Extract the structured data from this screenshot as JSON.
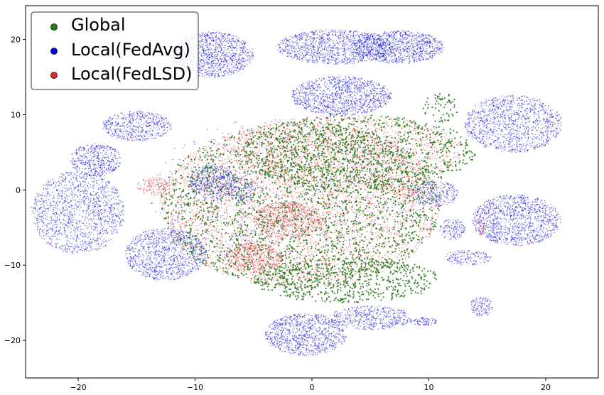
{
  "chart_data": {
    "type": "scatter",
    "title": "",
    "xlabel": "",
    "ylabel": "",
    "xlim": [
      -24.5,
      24.5
    ],
    "ylim": [
      -25,
      24.5
    ],
    "x_ticks": [
      -20,
      -10,
      0,
      10,
      20
    ],
    "y_ticks": [
      -20,
      -10,
      0,
      10,
      20
    ],
    "grid": false,
    "legend": {
      "placement": "top-left"
    },
    "series": [
      {
        "name": "Global",
        "color": "#2a7a1a",
        "clusters": [
          {
            "cx": -1,
            "cy": -2,
            "rx": 12,
            "ry": 11,
            "n": 2200
          },
          {
            "cx": 4,
            "cy": 5,
            "rx": 10,
            "ry": 5,
            "n": 900
          },
          {
            "cx": 3,
            "cy": -12,
            "rx": 8,
            "ry": 3,
            "n": 600
          },
          {
            "cx": 11,
            "cy": 11,
            "rx": 1.5,
            "ry": 2,
            "n": 60
          }
        ]
      },
      {
        "name": "Local(FedAvg)",
        "color": "#0000dd",
        "clusters": [
          {
            "cx": -8.5,
            "cy": 18,
            "rx": 3.5,
            "ry": 3,
            "n": 1100
          },
          {
            "cx": 2,
            "cy": 19,
            "rx": 5,
            "ry": 2.3,
            "n": 1100
          },
          {
            "cx": 7.5,
            "cy": 19,
            "rx": 3.8,
            "ry": 2.2,
            "n": 900
          },
          {
            "cx": 2.5,
            "cy": 12.5,
            "rx": 4.3,
            "ry": 2.6,
            "n": 1100
          },
          {
            "cx": -15,
            "cy": 8.5,
            "rx": 3,
            "ry": 2,
            "n": 500
          },
          {
            "cx": -18.5,
            "cy": 4,
            "rx": 2.2,
            "ry": 2.2,
            "n": 450
          },
          {
            "cx": -20,
            "cy": -3,
            "rx": 4,
            "ry": 5.5,
            "n": 1300
          },
          {
            "cx": -12.5,
            "cy": -8.5,
            "rx": 3.5,
            "ry": 3.5,
            "n": 1000
          },
          {
            "cx": -8.5,
            "cy": 1,
            "rx": 2,
            "ry": 2.3,
            "n": 450
          },
          {
            "cx": -6,
            "cy": 0,
            "rx": 1.2,
            "ry": 1.8,
            "n": 150
          },
          {
            "cx": 17.2,
            "cy": 8.8,
            "rx": 4.2,
            "ry": 3.8,
            "n": 1100
          },
          {
            "cx": 17.5,
            "cy": -4,
            "rx": 3.8,
            "ry": 3.4,
            "n": 1100
          },
          {
            "cx": 12,
            "cy": -5.2,
            "rx": 1.1,
            "ry": 1.4,
            "n": 130
          },
          {
            "cx": 13.3,
            "cy": -9,
            "rx": 2,
            "ry": 1,
            "n": 150
          },
          {
            "cx": 10.5,
            "cy": -0.5,
            "rx": 2,
            "ry": 1.8,
            "n": 250
          },
          {
            "cx": 5,
            "cy": -17,
            "rx": 3.5,
            "ry": 1.6,
            "n": 450
          },
          {
            "cx": -0.5,
            "cy": -19.2,
            "rx": 3.5,
            "ry": 2.8,
            "n": 900
          },
          {
            "cx": 14.5,
            "cy": -15.5,
            "rx": 1,
            "ry": 1.3,
            "n": 120
          },
          {
            "cx": 9.5,
            "cy": -17.5,
            "rx": 1.2,
            "ry": 0.6,
            "n": 80
          },
          {
            "cx": -2,
            "cy": 0,
            "rx": 12,
            "ry": 10,
            "n": 500
          }
        ]
      },
      {
        "name": "Local(FedLSD)",
        "color": "#e02a2a",
        "clusters": [
          {
            "cx": -1,
            "cy": -2,
            "rx": 12,
            "ry": 11,
            "n": 3800
          },
          {
            "cx": -2,
            "cy": -4,
            "rx": 3,
            "ry": 2.5,
            "n": 700
          },
          {
            "cx": -5,
            "cy": -9,
            "rx": 2.5,
            "ry": 2,
            "n": 500
          },
          {
            "cx": 3,
            "cy": 5,
            "rx": 10,
            "ry": 5,
            "n": 1300
          },
          {
            "cx": -13.5,
            "cy": 0.5,
            "rx": 1.5,
            "ry": 1.2,
            "n": 150
          },
          {
            "cx": 8,
            "cy": -0.3,
            "rx": 1,
            "ry": 0.7,
            "n": 60
          },
          {
            "cx": 14.5,
            "cy": -5,
            "rx": 0.4,
            "ry": 1,
            "n": 40
          }
        ]
      }
    ]
  }
}
